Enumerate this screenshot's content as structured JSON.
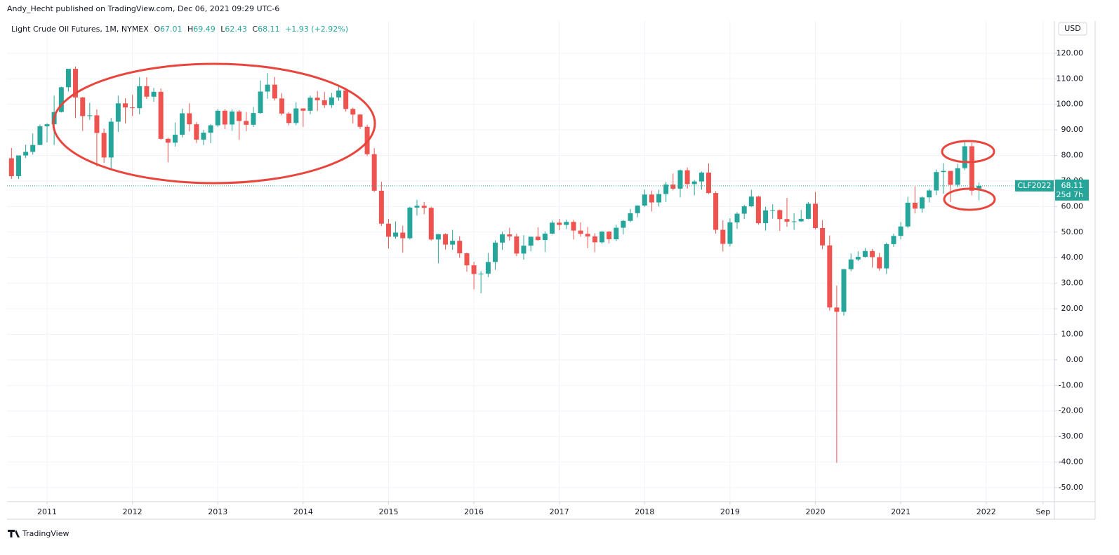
{
  "header": {
    "publisher": "Andy_Hecht published on TradingView.com, Dec 06, 2021 09:29 UTC-6",
    "symbol": "Light Crude Oil Futures, 1M, NYMEX",
    "ohlc_labels": [
      "O",
      "H",
      "L",
      "C"
    ],
    "change": "+1.93 (+2.92%)",
    "currency": "USD",
    "symbol_code": "CLF2022",
    "countdown": "25d 7h",
    "footer": "TradingView"
  },
  "chart_data": {
    "type": "candlestick",
    "up_color": "#26a69a",
    "down_color": "#ef5350",
    "grid": true,
    "x": [
      2010.583,
      2010.667,
      2010.75,
      2010.833,
      2010.917,
      2011,
      2011.083,
      2011.167,
      2011.25,
      2011.333,
      2011.417,
      2011.5,
      2011.583,
      2011.667,
      2011.75,
      2011.833,
      2011.917,
      2012,
      2012.083,
      2012.167,
      2012.25,
      2012.333,
      2012.417,
      2012.5,
      2012.583,
      2012.667,
      2012.75,
      2012.833,
      2012.917,
      2013,
      2013.083,
      2013.167,
      2013.25,
      2013.333,
      2013.417,
      2013.5,
      2013.583,
      2013.667,
      2013.75,
      2013.833,
      2013.917,
      2014,
      2014.083,
      2014.167,
      2014.25,
      2014.333,
      2014.417,
      2014.5,
      2014.583,
      2014.667,
      2014.75,
      2014.833,
      2014.917,
      2015,
      2015.083,
      2015.167,
      2015.25,
      2015.333,
      2015.417,
      2015.5,
      2015.583,
      2015.667,
      2015.75,
      2015.833,
      2015.917,
      2016,
      2016.083,
      2016.167,
      2016.25,
      2016.333,
      2016.417,
      2016.5,
      2016.583,
      2016.667,
      2016.75,
      2016.833,
      2016.917,
      2017,
      2017.083,
      2017.167,
      2017.25,
      2017.333,
      2017.417,
      2017.5,
      2017.583,
      2017.667,
      2017.75,
      2017.833,
      2017.917,
      2018,
      2018.083,
      2018.167,
      2018.25,
      2018.333,
      2018.417,
      2018.5,
      2018.583,
      2018.667,
      2018.75,
      2018.833,
      2018.917,
      2019,
      2019.083,
      2019.167,
      2019.25,
      2019.333,
      2019.417,
      2019.5,
      2019.583,
      2019.667,
      2019.75,
      2019.833,
      2019.917,
      2020,
      2020.083,
      2020.167,
      2020.25,
      2020.333,
      2020.417,
      2020.5,
      2020.583,
      2020.667,
      2020.75,
      2020.833,
      2020.917,
      2021,
      2021.083,
      2021.167,
      2021.25,
      2021.333,
      2021.417,
      2021.5,
      2021.583,
      2021.667,
      2021.75,
      2021.833,
      2021.917
    ],
    "open": [
      78.9,
      71.9,
      80.0,
      81.4,
      84.1,
      91.4,
      92.2,
      97.0,
      106.7,
      113.9,
      102.7,
      95.4,
      95.7,
      88.8,
      79.2,
      93.2,
      100.4,
      98.8,
      98.5,
      107.1,
      103.0,
      104.9,
      86.5,
      85.0,
      88.1,
      96.5,
      92.2,
      86.2,
      88.9,
      91.8,
      97.5,
      92.1,
      97.2,
      93.5,
      92.0,
      96.6,
      105.0,
      107.7,
      102.3,
      96.4,
      92.7,
      98.4,
      97.5,
      102.6,
      101.6,
      99.7,
      102.7,
      105.4,
      98.2,
      96.0,
      91.2,
      80.5,
      66.2,
      53.3,
      48.2,
      49.8,
      47.6,
      59.6,
      60.3,
      59.5,
      47.1,
      49.2,
      45.1,
      46.6,
      41.7,
      37.0,
      33.6,
      33.75,
      38.3,
      45.9,
      49.1,
      48.3,
      41.6,
      44.7,
      48.2,
      46.9,
      49.4,
      53.7,
      52.8,
      54.0,
      50.6,
      49.3,
      48.3,
      46.0,
      50.2,
      47.2,
      51.7,
      54.4,
      57.4,
      60.4,
      64.7,
      61.6,
      64.9,
      68.6,
      67.0,
      74.2,
      68.8,
      69.8,
      73.3,
      65.3,
      50.9,
      45.4,
      53.8,
      57.2,
      60.1,
      63.9,
      53.5,
      58.5,
      58.6,
      55.1,
      54.1,
      54.2,
      55.2,
      61.1,
      51.6,
      44.8,
      20.5,
      18.8,
      35.5,
      39.3,
      40.3,
      42.6,
      40.2,
      35.8,
      45.3,
      48.5,
      52.2,
      61.5,
      59.2,
      63.6,
      66.3,
      73.5,
      73.95,
      68.5,
      75.0,
      83.6,
      67.01
    ],
    "high": [
      82.9,
      80.0,
      84.2,
      88.6,
      92.1,
      92.6,
      103.4,
      106.9,
      113.9,
      114.8,
      102.9,
      100.6,
      98.0,
      90.5,
      94.7,
      103.4,
      102.4,
      103.7,
      110.6,
      110.6,
      106.4,
      106.2,
      86.9,
      92.9,
      98.3,
      100.4,
      93.0,
      90.0,
      92.2,
      98.2,
      98.2,
      98.0,
      97.8,
      97.0,
      99.0,
      109.3,
      112.2,
      110.7,
      104.4,
      97.0,
      100.8,
      98.5,
      103.4,
      105.2,
      104.9,
      104.5,
      107.7,
      106.5,
      98.7,
      96.2,
      92.0,
      82.9,
      69.7,
      55.2,
      54.2,
      52.5,
      59.9,
      62.6,
      61.8,
      59.9,
      49.3,
      49.5,
      50.9,
      48.4,
      42.0,
      38.4,
      34.7,
      41.9,
      46.8,
      50.2,
      51.7,
      49.4,
      48.8,
      48.2,
      51.9,
      50.3,
      54.5,
      55.2,
      54.9,
      54.8,
      53.8,
      52.0,
      49.6,
      50.4,
      50.4,
      52.9,
      54.8,
      59.0,
      60.5,
      66.7,
      66.3,
      66.6,
      69.6,
      72.9,
      74.5,
      75.3,
      70.4,
      73.7,
      76.9,
      66.0,
      54.6,
      55.4,
      57.8,
      60.7,
      66.6,
      64.2,
      59.9,
      60.9,
      58.8,
      63.4,
      57.4,
      58.7,
      61.8,
      65.7,
      54.7,
      48.7,
      29.1,
      35.6,
      41.6,
      42.5,
      43.8,
      43.4,
      41.9,
      45.9,
      49.4,
      53.9,
      63.8,
      67.9,
      64.0,
      67.0,
      74.5,
      76.98,
      74.0,
      76.7,
      85.4,
      84.97,
      69.49
    ],
    "low": [
      70.8,
      70.8,
      79.0,
      80.3,
      84.0,
      85.1,
      84.1,
      96.8,
      105.0,
      94.6,
      89.6,
      93.9,
      75.7,
      77.1,
      74.95,
      89.2,
      92.5,
      95.4,
      96.1,
      102.1,
      101.0,
      86.1,
      77.3,
      83.5,
      87.1,
      89.4,
      84.9,
      84.1,
      84.8,
      91.1,
      90.3,
      89.6,
      86.1,
      89.5,
      91.1,
      96.3,
      102.2,
      101.5,
      95.7,
      91.8,
      91.8,
      91.2,
      96.1,
      97.4,
      98.6,
      98.6,
      101.4,
      97.2,
      92.5,
      90.4,
      79.8,
      65.7,
      52.4,
      43.6,
      47.4,
      42.0,
      47.1,
      56.5,
      57.0,
      46.7,
      37.8,
      43.2,
      43.1,
      39.9,
      34.5,
      27.6,
      26.1,
      32.4,
      35.2,
      43.0,
      46.7,
      40.6,
      39.2,
      42.5,
      46.6,
      42.2,
      49.1,
      50.7,
      51.2,
      47.1,
      48.2,
      43.8,
      42.1,
      45.4,
      45.6,
      46.5,
      49.1,
      53.9,
      55.8,
      59.9,
      58.1,
      60.0,
      61.8,
      66.3,
      63.6,
      67.0,
      64.4,
      66.6,
      64.9,
      49.4,
      42.4,
      44.4,
      51.3,
      55.1,
      59.8,
      52.9,
      50.6,
      55.3,
      50.5,
      52.1,
      50.9,
      54.0,
      55.0,
      51.1,
      43.3,
      19.3,
      -40.3,
      17.3,
      34.7,
      38.7,
      40.0,
      36.1,
      34.9,
      33.6,
      44.2,
      47.2,
      51.6,
      57.3,
      57.6,
      61.6,
      64.5,
      65.0,
      61.7,
      67.6,
      74.2,
      64.4,
      62.43
    ],
    "close": [
      71.9,
      80.0,
      81.4,
      84.1,
      91.4,
      92.2,
      97.0,
      106.7,
      113.9,
      102.7,
      95.4,
      95.7,
      88.8,
      79.2,
      93.2,
      100.4,
      98.8,
      98.5,
      107.1,
      103.0,
      104.9,
      86.5,
      85.0,
      88.1,
      96.5,
      92.2,
      86.2,
      88.9,
      91.8,
      97.5,
      92.1,
      97.2,
      93.5,
      92.0,
      96.6,
      105.0,
      107.7,
      102.3,
      96.4,
      92.7,
      98.4,
      97.5,
      102.6,
      101.6,
      99.7,
      102.7,
      105.4,
      98.2,
      96.0,
      91.2,
      80.5,
      66.2,
      53.3,
      48.2,
      49.8,
      47.6,
      59.6,
      60.3,
      59.5,
      47.1,
      49.2,
      45.1,
      46.6,
      41.7,
      37.0,
      33.6,
      33.75,
      38.3,
      45.9,
      49.1,
      48.3,
      41.6,
      44.7,
      48.2,
      46.9,
      49.4,
      53.7,
      52.8,
      54.0,
      50.6,
      49.3,
      48.3,
      46.0,
      50.2,
      47.2,
      51.7,
      54.4,
      57.4,
      60.4,
      64.7,
      61.6,
      64.9,
      68.6,
      67.0,
      74.2,
      68.8,
      69.8,
      73.3,
      65.3,
      50.9,
      45.4,
      53.8,
      57.2,
      60.1,
      63.9,
      53.5,
      58.5,
      58.6,
      55.1,
      54.1,
      54.2,
      55.2,
      61.1,
      51.6,
      44.8,
      20.5,
      18.8,
      35.5,
      39.3,
      40.3,
      42.6,
      40.2,
      35.8,
      45.3,
      48.5,
      52.2,
      61.5,
      59.2,
      63.6,
      66.3,
      73.5,
      73.95,
      68.5,
      75.0,
      83.6,
      66.2,
      68.11
    ],
    "xlim": [
      2010.531,
      2022.8
    ],
    "xticks": [
      2011,
      2012,
      2013,
      2014,
      2015,
      2016,
      2017,
      2018,
      2019,
      2020,
      2021,
      2022,
      {
        "value": 2022.667,
        "label": "Sep"
      }
    ],
    "ylim": [
      -55.5,
      132.6
    ],
    "yticks": [
      {
        "value": 120,
        "label": "120.00"
      },
      {
        "value": 110,
        "label": "110.00"
      },
      {
        "value": 100,
        "label": "100.00"
      },
      {
        "value": 90,
        "label": "90.00"
      },
      {
        "value": 80,
        "label": "80.00"
      },
      {
        "value": 70,
        "label": "70.00"
      },
      {
        "value": 60,
        "label": "60.00"
      },
      {
        "value": 50,
        "label": "50.00"
      },
      {
        "value": 40,
        "label": "40.00"
      },
      {
        "value": 30,
        "label": "30.00"
      },
      {
        "value": 20,
        "label": "20.00"
      },
      {
        "value": 10,
        "label": "10.00"
      },
      {
        "value": 0,
        "label": "0.00"
      },
      {
        "value": -10,
        "label": "-10.00"
      },
      {
        "value": -20,
        "label": "-20.00"
      },
      {
        "value": -30,
        "label": "-30.00"
      },
      {
        "value": -40,
        "label": "-40.00"
      },
      {
        "value": -50,
        "label": "-50.00"
      }
    ]
  }
}
